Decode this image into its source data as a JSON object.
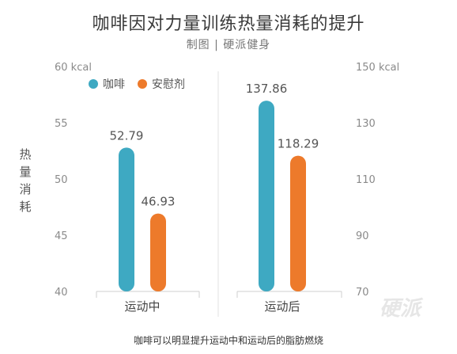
{
  "title": "咖啡因对力量训练热量消耗的提升",
  "subtitle": "制图 | 硬派健身",
  "caption": "咖啡可以明显提升运动中和运动后的脂肪燃烧",
  "watermark": "硬派",
  "colors": {
    "coffee": "#3ea9c2",
    "placebo": "#ed7a2b",
    "axis_text": "#8a8a8a",
    "grid": "#e2e2e2"
  },
  "chart_data": {
    "type": "bar",
    "ylabel": "热量消耗",
    "categories": [
      "运动中",
      "运动后"
    ],
    "legend": [
      {
        "name": "咖啡",
        "color": "#3ea9c2"
      },
      {
        "name": "安慰剂",
        "color": "#ed7a2b"
      }
    ],
    "legend_position": "top-left",
    "groups": [
      {
        "category": "运动中",
        "axis": "left",
        "values": [
          {
            "series": "咖啡",
            "value": 52.79,
            "label": "52.79"
          },
          {
            "series": "安慰剂",
            "value": 46.93,
            "label": "46.93"
          }
        ]
      },
      {
        "category": "运动后",
        "axis": "right",
        "values": [
          {
            "series": "咖啡",
            "value": 137.86,
            "label": "137.86"
          },
          {
            "series": "安慰剂",
            "value": 118.29,
            "label": "118.29"
          }
        ]
      }
    ],
    "left_axis": {
      "ylim": [
        40,
        60
      ],
      "ticks": [
        40,
        45,
        50,
        55,
        60
      ],
      "tick_labels": [
        "40",
        "45",
        "50",
        "55",
        "60"
      ],
      "top_unit": "kcal"
    },
    "right_axis": {
      "ylim": [
        70,
        150
      ],
      "ticks": [
        70,
        90,
        110,
        130,
        150
      ],
      "tick_labels": [
        "70",
        "90",
        "110",
        "130",
        "150"
      ],
      "top_unit": "kcal"
    },
    "grid": false
  }
}
